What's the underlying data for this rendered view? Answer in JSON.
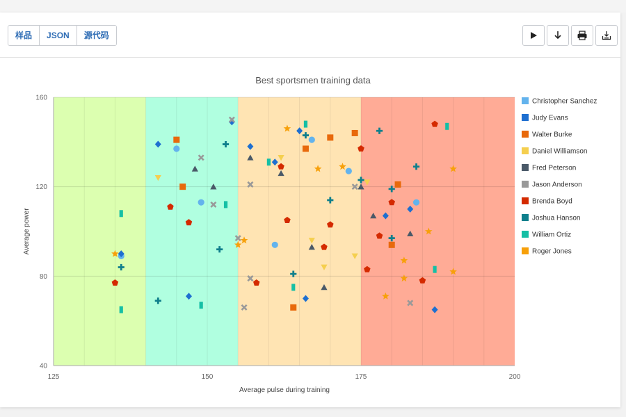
{
  "toolbar": {
    "tabs": [
      {
        "label": "样品"
      },
      {
        "label": "JSON"
      },
      {
        "label": "源代码"
      }
    ],
    "icons": [
      "play-icon",
      "download-arrow-icon",
      "print-icon",
      "export-icon"
    ]
  },
  "colors": {
    "Christopher Sanchez": "#63b3ed",
    "Judy Evans": "#1e6fd0",
    "Walter Burke": "#e8690b",
    "Daniel Williamson": "#f5cf4f",
    "Fred Peterson": "#4a5968",
    "Jason Anderson": "#999999",
    "Brenda Boyd": "#d42a00",
    "Joshua Hanson": "#0f7f8c",
    "William Ortiz": "#15bfa5",
    "Roger Jones": "#f7a00a"
  },
  "chart_data": {
    "type": "scatter",
    "title": "Best sportsmen training data",
    "xlabel": "Average pulse during training",
    "ylabel": "Average power",
    "xlim": [
      125,
      200
    ],
    "ylim": [
      40,
      160
    ],
    "xticks": [
      125,
      150,
      175,
      200
    ],
    "yticks": [
      40,
      80,
      120,
      160
    ],
    "grid": true,
    "legend_position": "right",
    "bands": [
      {
        "from": 125,
        "to": 140,
        "color": "#dcffb0"
      },
      {
        "from": 140,
        "to": 155,
        "color": "#b0ffe0"
      },
      {
        "from": 155,
        "to": 175,
        "color": "#ffe4b3"
      },
      {
        "from": 175,
        "to": 200,
        "color": "#ffab96"
      }
    ],
    "series": [
      {
        "name": "Christopher Sanchez",
        "symbol": "circle",
        "x": [
          136,
          145,
          149,
          161,
          167,
          173,
          184
        ],
        "y": [
          89,
          137,
          113,
          94,
          141,
          127,
          113
        ]
      },
      {
        "name": "Judy Evans",
        "symbol": "diamond",
        "x": [
          136,
          142,
          147,
          154,
          157,
          161,
          165,
          166,
          179,
          183,
          187
        ],
        "y": [
          90,
          139,
          71,
          149,
          138,
          131,
          145,
          70,
          107,
          110,
          65
        ]
      },
      {
        "name": "Walter Burke",
        "symbol": "square",
        "x": [
          145,
          146,
          164,
          166,
          170,
          174,
          180,
          181
        ],
        "y": [
          141,
          120,
          66,
          137,
          142,
          144,
          94,
          121
        ]
      },
      {
        "name": "Daniel Williamson",
        "symbol": "triangle-down",
        "x": [
          142,
          162,
          167,
          169,
          174,
          176
        ],
        "y": [
          124,
          133,
          96,
          84,
          89,
          122
        ]
      },
      {
        "name": "Fred Peterson",
        "symbol": "triangle",
        "x": [
          148,
          151,
          157,
          162,
          167,
          169,
          175,
          177,
          183
        ],
        "y": [
          128,
          120,
          133,
          126,
          93,
          75,
          120,
          107,
          99
        ]
      },
      {
        "name": "Jason Anderson",
        "symbol": "x",
        "x": [
          149,
          151,
          154,
          155,
          156,
          157,
          157,
          174,
          183
        ],
        "y": [
          133,
          112,
          150,
          97,
          66,
          121,
          79,
          120,
          68
        ]
      },
      {
        "name": "Brenda Boyd",
        "symbol": "pentagon",
        "x": [
          135,
          144,
          147,
          158,
          162,
          163,
          169,
          170,
          175,
          176,
          178,
          180,
          185,
          187
        ],
        "y": [
          77,
          111,
          104,
          77,
          129,
          105,
          93,
          103,
          137,
          83,
          98,
          113,
          78,
          148
        ]
      },
      {
        "name": "Joshua Hanson",
        "symbol": "cross",
        "x": [
          136,
          142,
          152,
          153,
          164,
          166,
          170,
          175,
          178,
          180,
          180,
          184
        ],
        "y": [
          84,
          69,
          92,
          139,
          81,
          143,
          114,
          123,
          145,
          97,
          119,
          129
        ]
      },
      {
        "name": "William Ortiz",
        "symbol": "bar",
        "x": [
          136,
          136,
          149,
          153,
          160,
          164,
          166,
          187,
          189
        ],
        "y": [
          108,
          65,
          67,
          112,
          131,
          75,
          148,
          83,
          147
        ]
      },
      {
        "name": "Roger Jones",
        "symbol": "star",
        "x": [
          135,
          155,
          156,
          163,
          168,
          172,
          182,
          182,
          179,
          186,
          190,
          190
        ],
        "y": [
          90,
          94,
          96,
          146,
          128,
          129,
          87,
          79,
          71,
          100,
          128,
          82
        ]
      }
    ]
  }
}
